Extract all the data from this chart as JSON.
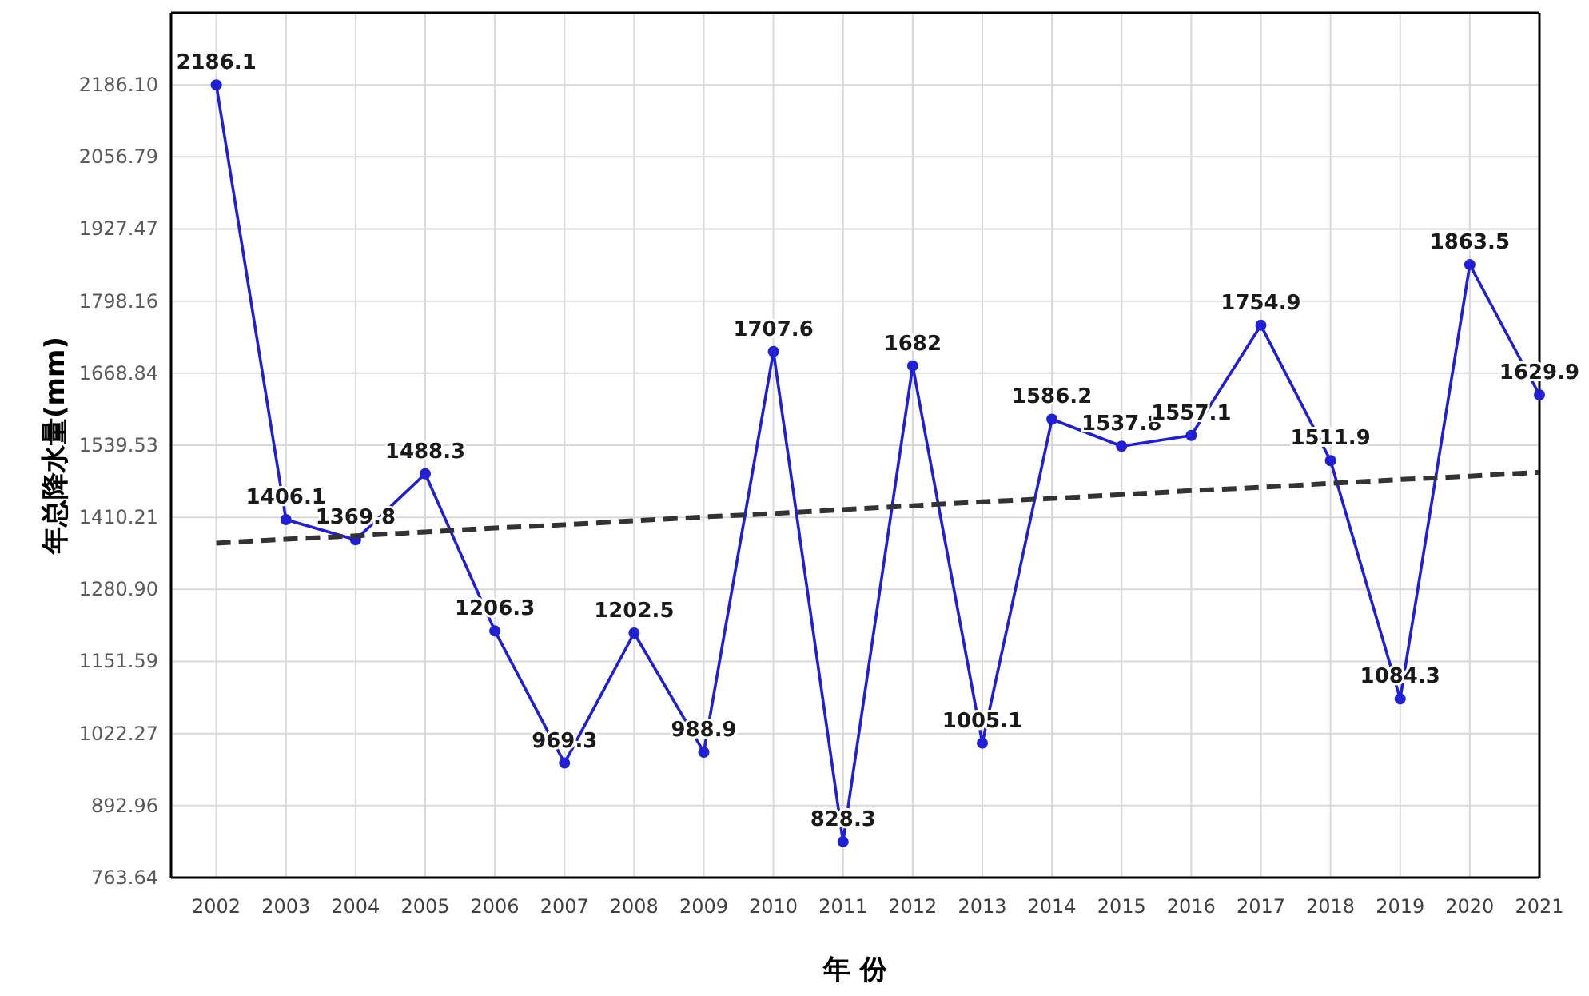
{
  "chart_data": {
    "type": "line",
    "xlabel": "年 份",
    "ylabel": "年总降水量(mm)",
    "categories": [
      "2002",
      "2003",
      "2004",
      "2005",
      "2006",
      "2007",
      "2008",
      "2009",
      "2010",
      "2011",
      "2012",
      "2013",
      "2014",
      "2015",
      "2016",
      "2017",
      "2018",
      "2019",
      "2020",
      "2021"
    ],
    "series": [
      {
        "color": "#1f1fd6",
        "values": [
          2186.1,
          1406.1,
          1369.8,
          1488.3,
          1206.3,
          969.3,
          1202.5,
          988.9,
          1707.6,
          828.3,
          1682,
          1005.1,
          1586.2,
          1537.8,
          1557.1,
          1754.9,
          1511.9,
          1084.3,
          1863.5,
          1629.9
        ],
        "data_labels": true,
        "marker": "circle",
        "line_style": "solid"
      },
      {
        "type": "line",
        "color": "#333333",
        "values": [
          1364,
          1371,
          1377,
          1384,
          1391,
          1397,
          1404,
          1411,
          1417,
          1424,
          1431,
          1438,
          1444,
          1451,
          1458,
          1464,
          1471,
          1478,
          1484,
          1491
        ],
        "line_style": "dashed",
        "marker": "none"
      }
    ],
    "ylim": [
      763.64,
      2315.41
    ],
    "yticks": [
      {
        "value": 763.64,
        "label": "763.64"
      },
      {
        "value": 892.96,
        "label": "892.96"
      },
      {
        "value": 1022.27,
        "label": "1022.27"
      },
      {
        "value": 1151.59,
        "label": "1151.59"
      },
      {
        "value": 1280.9,
        "label": "1280.90"
      },
      {
        "value": 1410.21,
        "label": "1410.21"
      },
      {
        "value": 1539.53,
        "label": "1539.53"
      },
      {
        "value": 1668.84,
        "label": "1668.84"
      },
      {
        "value": 1798.16,
        "label": "1798.16"
      },
      {
        "value": 1927.47,
        "label": "1927.47"
      },
      {
        "value": 2056.79,
        "label": "2056.79"
      },
      {
        "value": 2186.1,
        "label": "2186.10"
      }
    ],
    "grid": true
  }
}
